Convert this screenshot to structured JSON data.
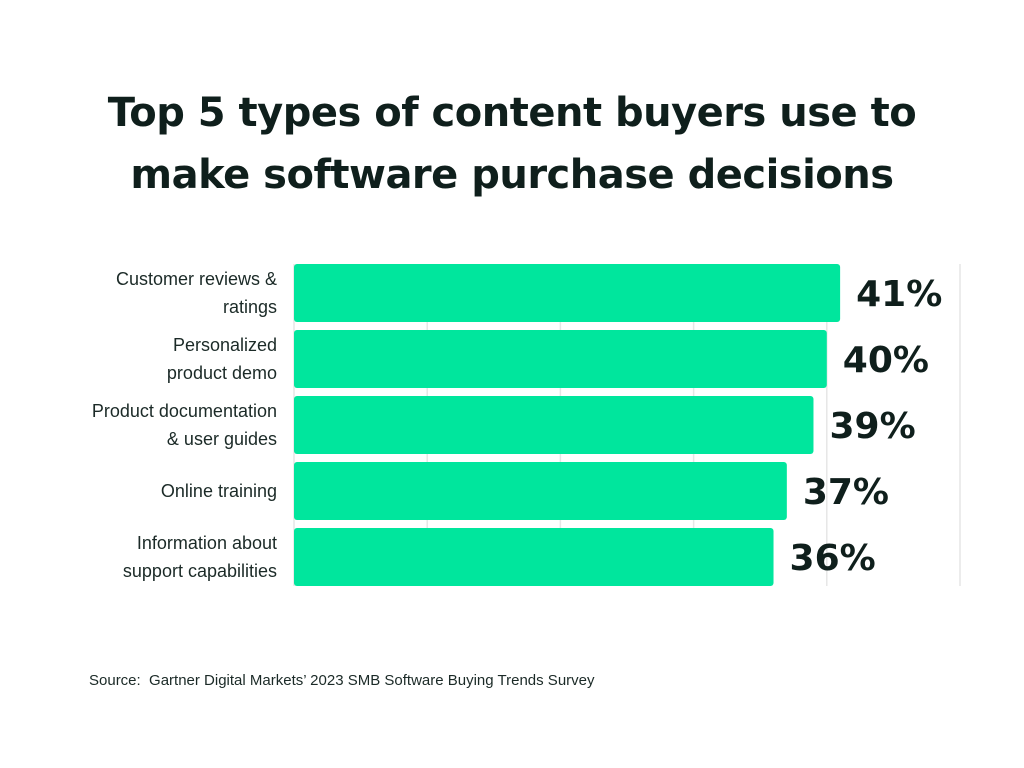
{
  "chart_data": {
    "type": "bar",
    "orientation": "horizontal",
    "title": "Top 5 types of content buyers use to\nmake software purchase decisions",
    "categories": [
      "Customer reviews &\nratings",
      "Personalized\nproduct demo",
      "Product documentation\n& user guides",
      "Online training",
      "Information about\nsupport capabilities"
    ],
    "values": [
      41,
      40,
      39,
      37,
      36
    ],
    "value_labels": [
      "41%",
      "40%",
      "39%",
      "37%",
      "36%"
    ],
    "unit": "%",
    "xlim": [
      0,
      50
    ],
    "grid": true,
    "legend": "none",
    "bar_color": "#00e69d",
    "grid_color": "#e6e6e6",
    "source": "Source:  Gartner Digital Markets’ 2023 SMB Software Buying Trends Survey"
  }
}
